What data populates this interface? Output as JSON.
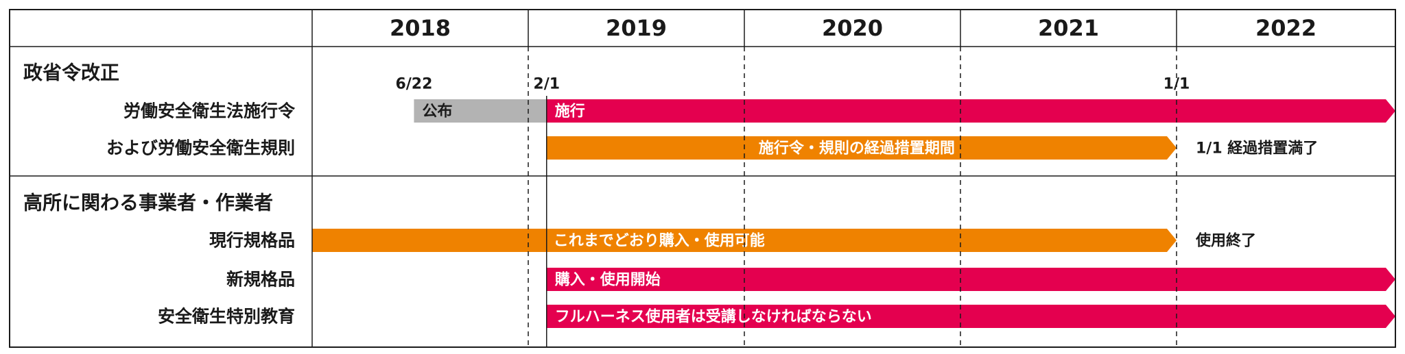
{
  "title": "",
  "header": {
    "years": [
      "2018",
      "2019",
      "2020",
      "2021",
      "2022"
    ]
  },
  "sections": [
    {
      "title": "政省令改正",
      "rows": [
        {
          "label": "労働安全衛生法施行令"
        },
        {
          "label": "および労働安全衛生規則"
        }
      ]
    },
    {
      "title": "高所に関わる事業者・作業者",
      "rows": [
        {
          "label": "現行規格品"
        },
        {
          "label": "新規格品"
        },
        {
          "label": "安全衛生特別教育"
        }
      ]
    }
  ],
  "chart_data": {
    "type": "gantt",
    "time_axis": {
      "start": "2018-01-01",
      "end": "2023-01-01",
      "tick_labels": [
        "2018",
        "2019",
        "2020",
        "2021",
        "2022"
      ]
    },
    "milestones": [
      {
        "label": "6/22",
        "date": "2018-06-22"
      },
      {
        "label": "2/1",
        "date": "2019-02-01"
      },
      {
        "label": "1/1",
        "date": "2022-01-01"
      }
    ],
    "bars": [
      {
        "row": "労働安全衛生法施行令",
        "text": "公布",
        "start": "2018-06-22",
        "end": "2019-02-01",
        "color": "#b3b3b3",
        "arrow": false
      },
      {
        "row": "労働安全衛生法施行令",
        "text": "施行",
        "start": "2019-02-01",
        "end": "2023-01-01",
        "color": "#e4004f",
        "arrow": true
      },
      {
        "row": "および労働安全衛生規則",
        "text": "施行令・規則の経過措置期間",
        "start": "2019-02-01",
        "end": "2022-01-01",
        "color": "#ef8200",
        "arrow": true,
        "text_align": "center"
      },
      {
        "row": "現行規格品",
        "text": "これまでどおり購入・使用可能",
        "start": "2018-01-01",
        "end": "2022-01-01",
        "color": "#ef8200",
        "arrow": true,
        "text_offset": "2019-02-01"
      },
      {
        "row": "新規格品",
        "text": "購入・使用開始",
        "start": "2019-02-01",
        "end": "2023-01-01",
        "color": "#e4004f",
        "arrow": true
      },
      {
        "row": "安全衛生特別教育",
        "text": "フルハーネス使用者は受講しなければならない",
        "start": "2019-02-01",
        "end": "2023-01-01",
        "color": "#e4004f",
        "arrow": true
      }
    ],
    "end_notes": [
      {
        "row": "および労働安全衛生規則",
        "text": "1/1 経過措置満了"
      },
      {
        "row": "現行規格品",
        "text": "使用終了"
      }
    ],
    "colors": {
      "pink": "#e4004f",
      "orange": "#ef8200",
      "gray": "#b3b3b3",
      "grid": "#1a1a1a"
    }
  }
}
